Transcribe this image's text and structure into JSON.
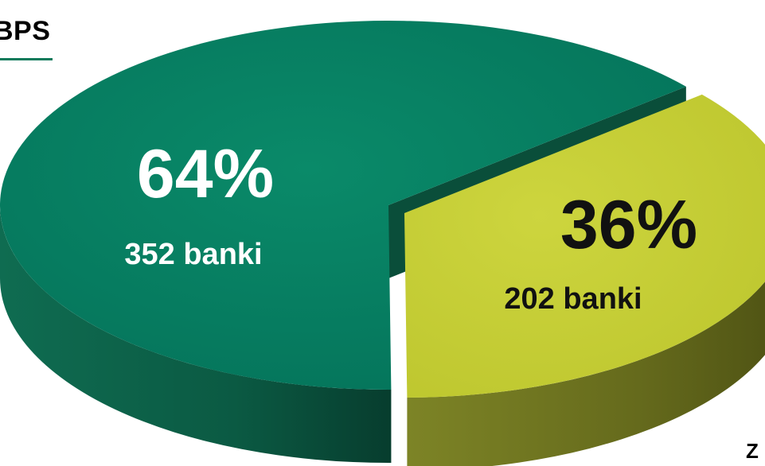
{
  "header": {
    "label": "BPS"
  },
  "edge_text": "Z",
  "chart_data": {
    "type": "pie",
    "title": "",
    "categories": [
      "352 banki",
      "202 banki"
    ],
    "values": [
      64,
      36
    ],
    "counts": [
      352,
      202
    ],
    "value_labels": [
      "64%",
      "36%"
    ],
    "count_labels": [
      "352 banki",
      "202 banki"
    ],
    "colors": {
      "slice_0_top": "#057c5f",
      "slice_0_side": "#0b5a43",
      "slice_1_top": "#c7cf35",
      "slice_1_side": "#6f7420",
      "slice_0_text": "#ffffff",
      "slice_1_text": "#111111"
    },
    "style": "3d-exploded"
  }
}
